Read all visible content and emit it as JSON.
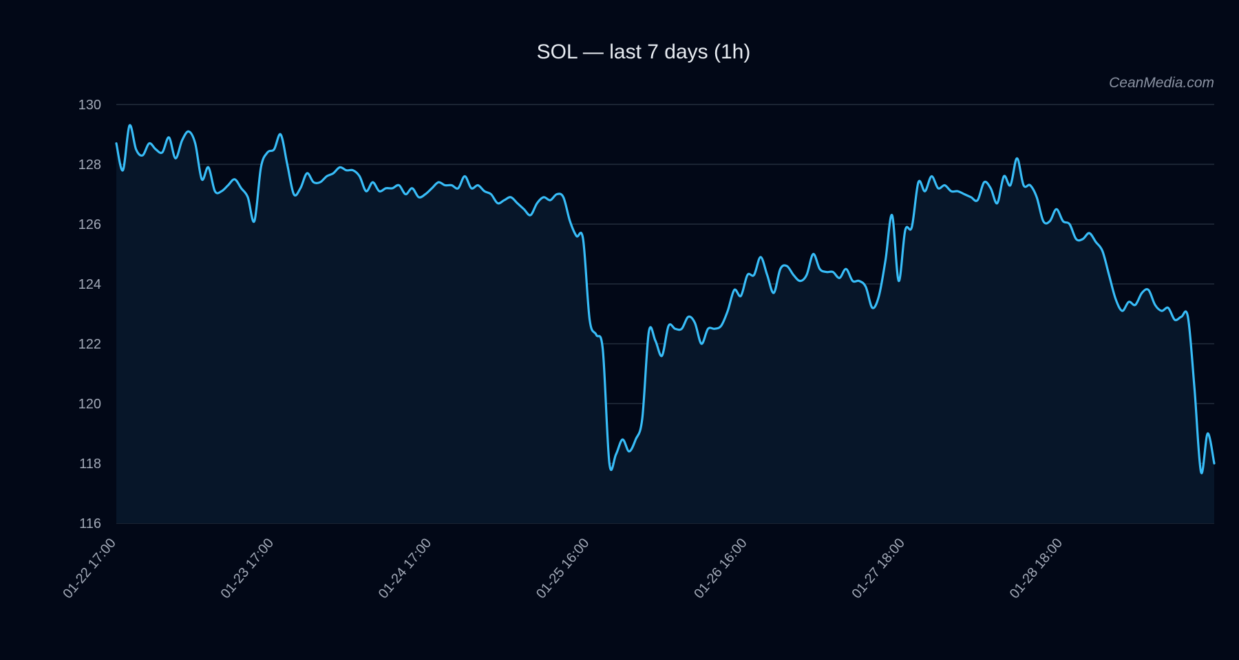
{
  "chart_data": {
    "type": "line",
    "title": "SOL — last 7 days (1h)",
    "watermark": "CeanMedia.com",
    "xlabel": "",
    "ylabel": "",
    "ylim": [
      116,
      130
    ],
    "yticks": [
      116,
      118,
      120,
      122,
      124,
      126,
      128,
      130
    ],
    "xticks": [
      "01-22 17:00",
      "01-23 17:00",
      "01-24 17:00",
      "01-25 16:00",
      "01-26 16:00",
      "01-27 18:00",
      "01-28 18:00"
    ],
    "xtick_index": [
      0,
      24,
      48,
      72,
      96,
      120,
      144
    ],
    "grid": "horizontal",
    "line_color": "#38bdf8",
    "fill_color": "#071629",
    "series": [
      {
        "values": [
          128.7,
          127.8,
          129.3,
          128.5,
          128.3,
          128.7,
          128.5,
          128.4,
          128.9,
          128.2,
          128.8,
          129.1,
          128.7,
          127.5,
          127.9,
          127.1,
          127.1,
          127.3,
          127.5,
          127.2,
          126.9,
          126.1,
          127.9,
          128.4,
          128.5,
          129.0,
          128.0,
          127.0,
          127.2,
          127.7,
          127.4,
          127.4,
          127.6,
          127.7,
          127.9,
          127.8,
          127.8,
          127.6,
          127.1,
          127.4,
          127.1,
          127.2,
          127.2,
          127.3,
          127.0,
          127.2,
          126.9,
          127.0,
          127.2,
          127.4,
          127.3,
          127.3,
          127.2,
          127.6,
          127.2,
          127.3,
          127.1,
          127.0,
          126.7,
          126.8,
          126.9,
          126.7,
          126.5,
          126.3,
          126.7,
          126.9,
          126.8,
          127.0,
          126.9,
          126.1,
          125.6,
          125.5,
          122.8,
          122.3,
          121.8,
          118.0,
          118.3,
          118.8,
          118.4,
          118.8,
          119.5,
          122.4,
          122.1,
          121.6,
          122.6,
          122.5,
          122.5,
          122.9,
          122.7,
          122.0,
          122.5,
          122.5,
          122.6,
          123.1,
          123.8,
          123.6,
          124.3,
          124.3,
          124.9,
          124.3,
          123.7,
          124.5,
          124.6,
          124.3,
          124.1,
          124.3,
          125.0,
          124.5,
          124.4,
          124.4,
          124.2,
          124.5,
          124.1,
          124.1,
          123.9,
          123.2,
          123.6,
          124.8,
          126.3,
          124.1,
          125.8,
          125.9,
          127.4,
          127.1,
          127.6,
          127.2,
          127.3,
          127.1,
          127.1,
          127.0,
          126.9,
          126.8,
          127.4,
          127.2,
          126.7,
          127.6,
          127.3,
          128.2,
          127.3,
          127.3,
          126.9,
          126.1,
          126.1,
          126.5,
          126.1,
          126.0,
          125.5,
          125.5,
          125.7,
          125.4,
          125.1,
          124.3,
          123.5,
          123.1,
          123.4,
          123.3,
          123.7,
          123.8,
          123.3,
          123.1,
          123.2,
          122.8,
          122.9,
          122.9,
          120.5,
          117.7,
          119.0,
          118.0
        ]
      }
    ]
  }
}
